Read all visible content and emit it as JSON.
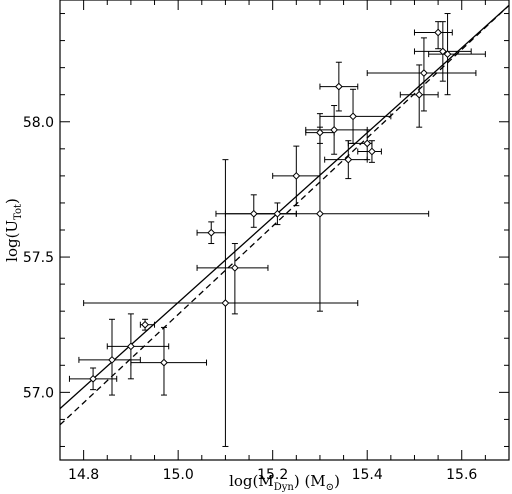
{
  "chart_data": {
    "type": "scatter",
    "title": "",
    "xlabel": {
      "prefix": "log(M",
      "sub": "Dyn",
      "suffix": ") (M",
      "unit_symbol": "⊙",
      "close": ")"
    },
    "ylabel": {
      "prefix": "log(U",
      "sub": "Tot",
      "suffix": ")"
    },
    "xlim": [
      14.75,
      15.7
    ],
    "ylim": [
      56.75,
      58.45
    ],
    "xticks": [
      14.8,
      15.0,
      15.2,
      15.4,
      15.6
    ],
    "xtick_labels": [
      "14.8",
      "15.0",
      "15.2",
      "15.4",
      "15.6"
    ],
    "yticks": [
      57.0,
      57.5,
      58.0
    ],
    "ytick_labels": [
      "57.0",
      "57.5",
      "58.0"
    ],
    "x_minor_step": 0.05,
    "y_minor_step": 0.1,
    "grid": false,
    "legend": "none",
    "points": [
      {
        "x": 14.82,
        "y": 57.05,
        "xlo": 14.77,
        "xhi": 14.87,
        "ylo": 57.01,
        "yhi": 57.09
      },
      {
        "x": 14.86,
        "y": 57.12,
        "xlo": 14.79,
        "xhi": 14.92,
        "ylo": 56.99,
        "yhi": 57.27
      },
      {
        "x": 14.9,
        "y": 57.17,
        "xlo": 14.85,
        "xhi": 14.98,
        "ylo": 57.05,
        "yhi": 57.29
      },
      {
        "x": 14.93,
        "y": 57.25,
        "xlo": 14.92,
        "xhi": 14.95,
        "ylo": 57.23,
        "yhi": 57.27
      },
      {
        "x": 14.97,
        "y": 57.11,
        "xlo": 14.9,
        "xhi": 15.06,
        "ylo": 56.99,
        "yhi": 57.24
      },
      {
        "x": 15.07,
        "y": 57.59,
        "xlo": 15.04,
        "xhi": 15.1,
        "ylo": 57.55,
        "yhi": 57.63
      },
      {
        "x": 15.1,
        "y": 57.33,
        "xlo": 14.8,
        "xhi": 15.38,
        "ylo": 56.8,
        "yhi": 57.86
      },
      {
        "x": 15.12,
        "y": 57.46,
        "xlo": 15.04,
        "xhi": 15.19,
        "ylo": 57.29,
        "yhi": 57.55
      },
      {
        "x": 15.16,
        "y": 57.66,
        "xlo": 15.08,
        "xhi": 15.25,
        "ylo": 57.61,
        "yhi": 57.73
      },
      {
        "x": 15.21,
        "y": 57.66,
        "xlo": 15.16,
        "xhi": 15.25,
        "ylo": 57.62,
        "yhi": 57.7
      },
      {
        "x": 15.25,
        "y": 57.8,
        "xlo": 15.2,
        "xhi": 15.3,
        "ylo": 57.69,
        "yhi": 57.91
      },
      {
        "x": 15.3,
        "y": 57.66,
        "xlo": 15.1,
        "xhi": 15.53,
        "ylo": 57.3,
        "yhi": 58.03
      },
      {
        "x": 15.3,
        "y": 57.96,
        "xlo": 15.27,
        "xhi": 15.33,
        "ylo": 57.92,
        "yhi": 57.98
      },
      {
        "x": 15.33,
        "y": 57.97,
        "xlo": 15.27,
        "xhi": 15.4,
        "ylo": 57.88,
        "yhi": 58.06
      },
      {
        "x": 15.34,
        "y": 58.13,
        "xlo": 15.3,
        "xhi": 15.38,
        "ylo": 58.04,
        "yhi": 58.22
      },
      {
        "x": 15.36,
        "y": 57.86,
        "xlo": 15.31,
        "xhi": 15.4,
        "ylo": 57.79,
        "yhi": 57.93
      },
      {
        "x": 15.37,
        "y": 58.02,
        "xlo": 15.3,
        "xhi": 15.45,
        "ylo": 57.92,
        "yhi": 58.12
      },
      {
        "x": 15.4,
        "y": 57.92,
        "xlo": 15.36,
        "xhi": 15.41,
        "ylo": 57.86,
        "yhi": 57.97
      },
      {
        "x": 15.41,
        "y": 57.89,
        "xlo": 15.38,
        "xhi": 15.43,
        "ylo": 57.85,
        "yhi": 57.93
      },
      {
        "x": 15.51,
        "y": 58.1,
        "xlo": 15.47,
        "xhi": 15.55,
        "ylo": 57.98,
        "yhi": 58.21
      },
      {
        "x": 15.52,
        "y": 58.18,
        "xlo": 15.4,
        "xhi": 15.63,
        "ylo": 58.04,
        "yhi": 58.31
      },
      {
        "x": 15.55,
        "y": 58.33,
        "xlo": 15.5,
        "xhi": 15.58,
        "ylo": 58.27,
        "yhi": 58.37
      },
      {
        "x": 15.56,
        "y": 58.26,
        "xlo": 15.5,
        "xhi": 15.62,
        "ylo": 58.15,
        "yhi": 58.37
      },
      {
        "x": 15.57,
        "y": 58.25,
        "xlo": 15.53,
        "xhi": 15.65,
        "ylo": 58.1,
        "yhi": 58.4
      }
    ],
    "fit_lines": [
      {
        "style": "solid",
        "x": [
          14.75,
          15.7
        ],
        "y": [
          56.94,
          58.43
        ]
      },
      {
        "style": "dashed",
        "x": [
          14.75,
          15.7
        ],
        "y": [
          56.88,
          58.43
        ]
      }
    ]
  }
}
